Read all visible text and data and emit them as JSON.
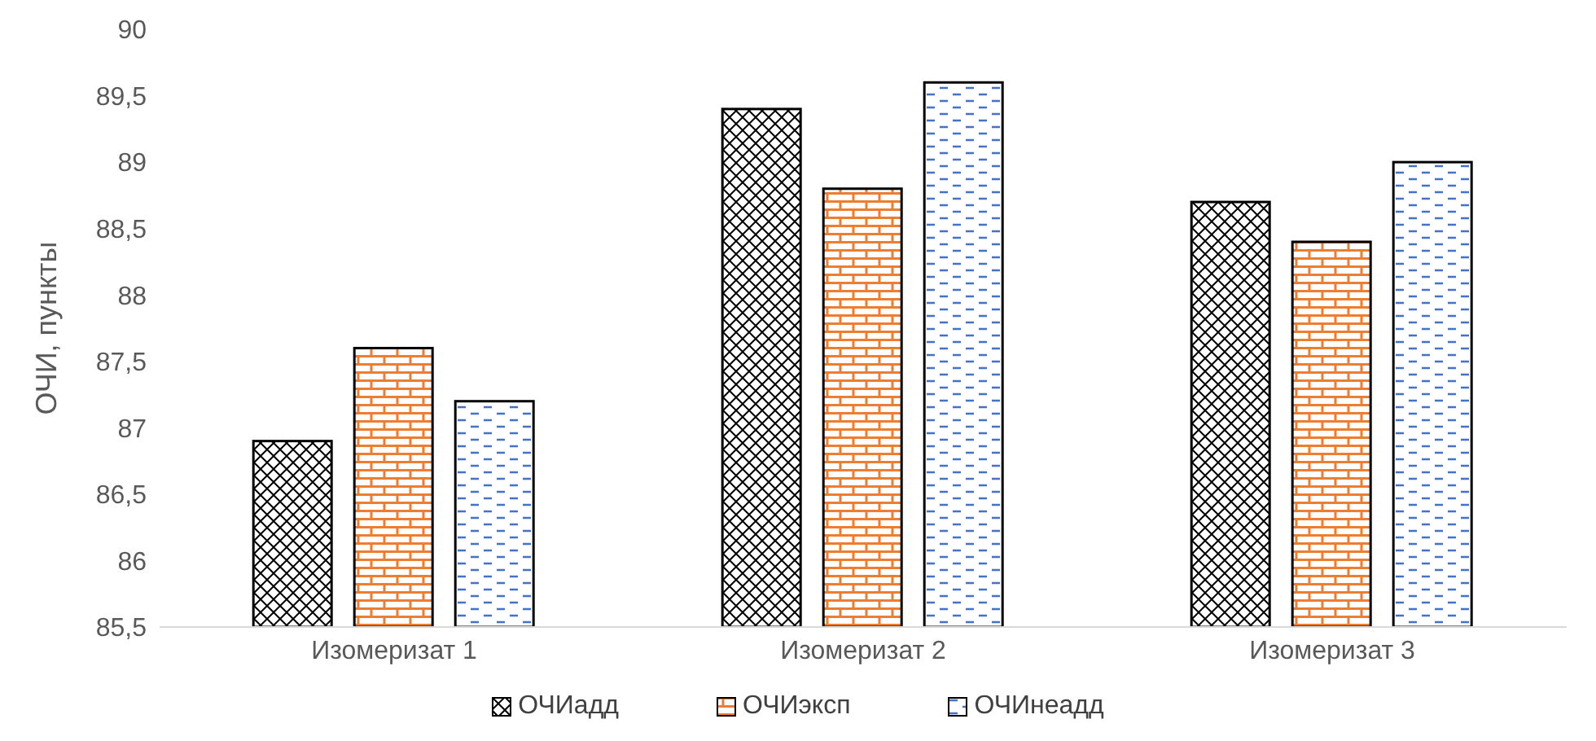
{
  "chart_data": {
    "type": "bar",
    "ylabel": "ОЧИ, пункты",
    "categories": [
      "Изомеризат 1",
      "Изомеризат 2",
      "Изомеризат 3"
    ],
    "series": [
      {
        "name": "ОЧИадд",
        "color": "#000000",
        "values": [
          86.9,
          89.4,
          88.7
        ]
      },
      {
        "name": "ОЧИэксп",
        "color": "#ed7d31",
        "values": [
          87.6,
          88.8,
          88.4
        ]
      },
      {
        "name": "ОЧИнеадд",
        "color": "#4472c4",
        "values": [
          87.2,
          89.6,
          89.0
        ]
      }
    ],
    "ylim": [
      85.5,
      90
    ],
    "yticks": [
      {
        "value": 85.5,
        "label": "85,5"
      },
      86,
      {
        "value": 86.5,
        "label": "86,5"
      },
      87,
      {
        "value": 87.5,
        "label": "87,5"
      },
      88,
      {
        "value": 88.5,
        "label": "88,5"
      },
      89,
      {
        "value": 89.5,
        "label": "89,5"
      },
      90
    ],
    "grid": false,
    "legend": "bottom"
  }
}
